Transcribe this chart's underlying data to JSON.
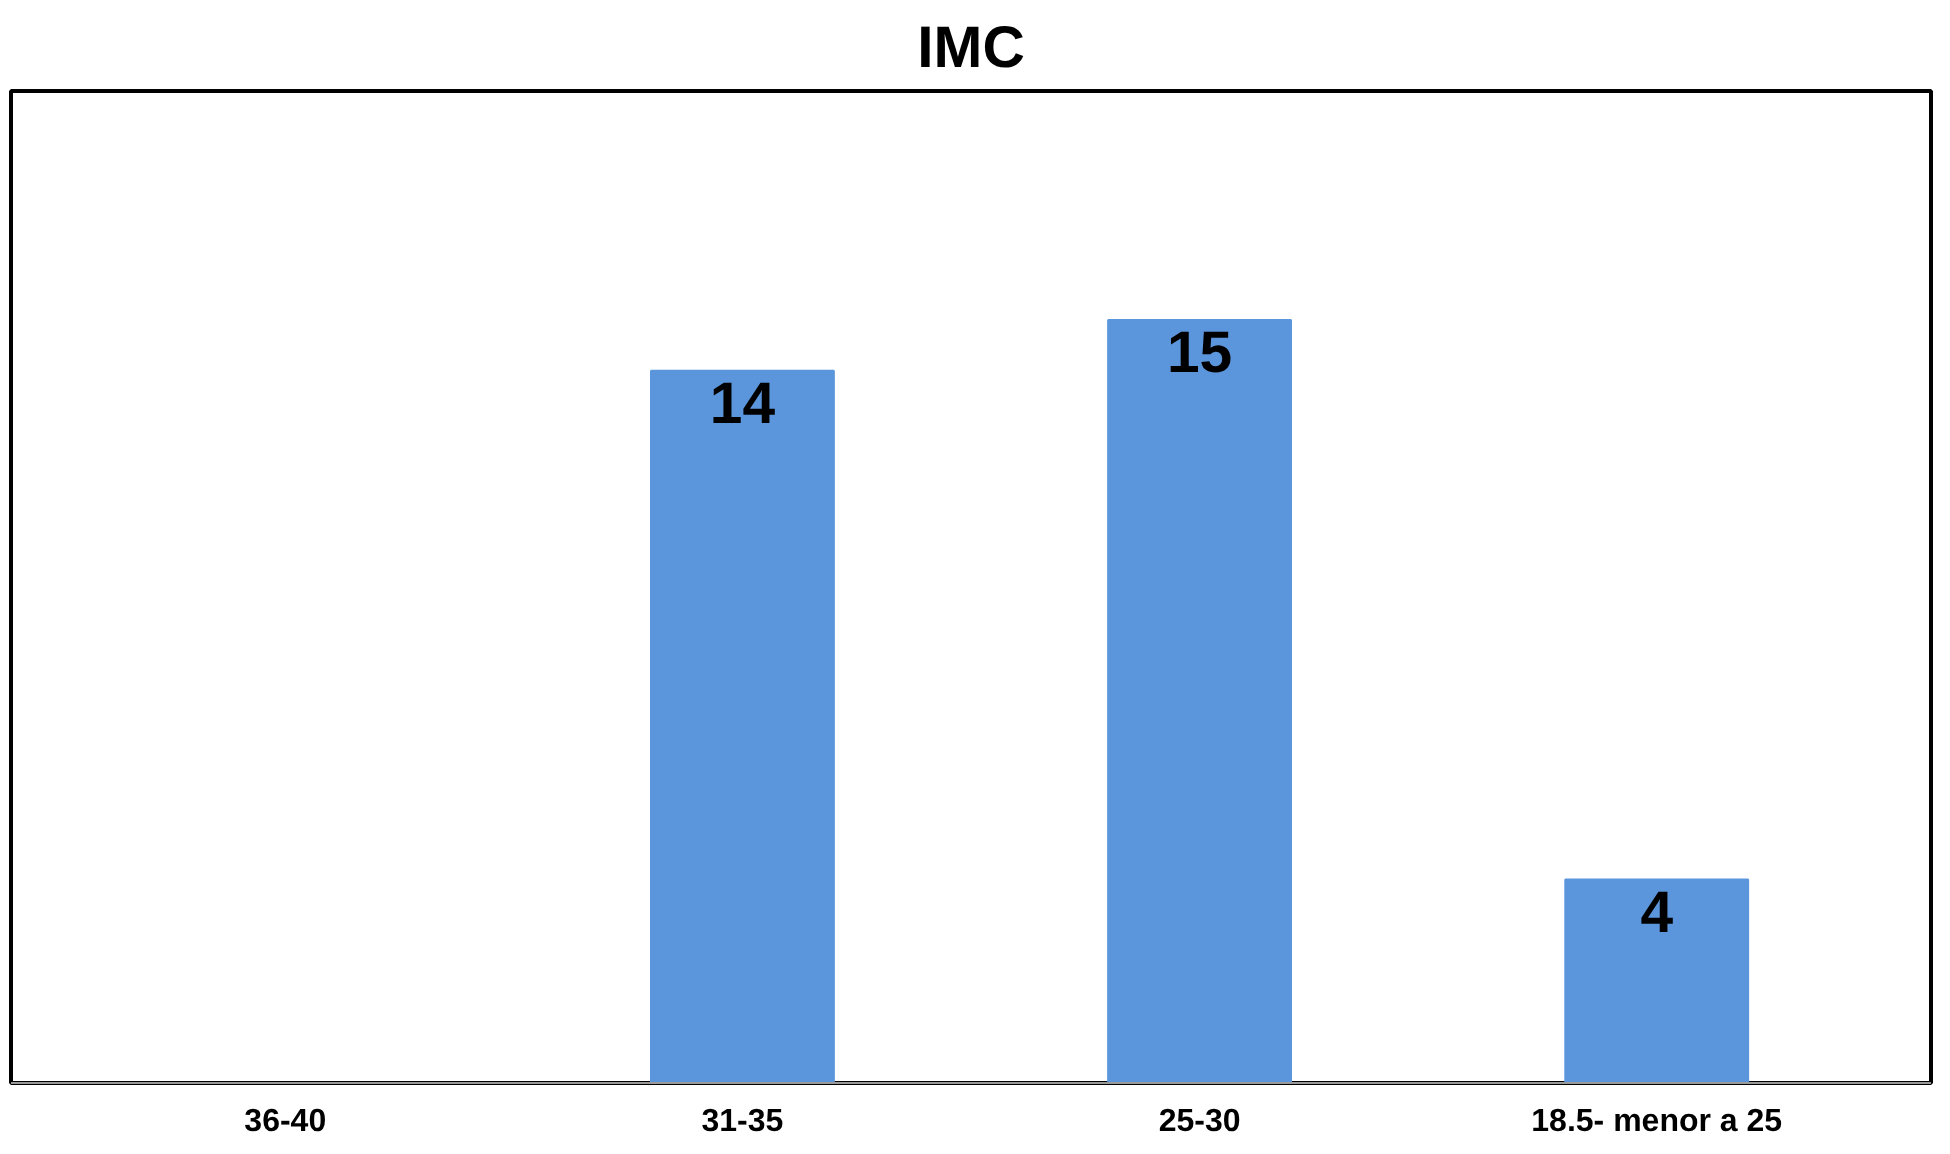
{
  "chart_data": {
    "type": "bar",
    "title": "IMC",
    "categories": [
      "36-40",
      "31-35",
      "25-30",
      "18.5- menor a 25"
    ],
    "values": [
      null,
      14,
      15,
      4
    ],
    "color": "#5b96dc",
    "data_labels": true,
    "grid": false
  }
}
